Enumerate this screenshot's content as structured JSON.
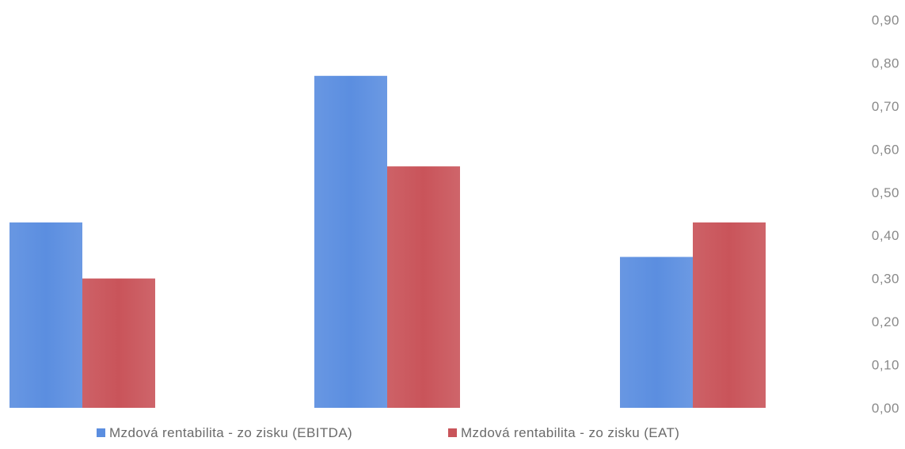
{
  "chart_data": {
    "type": "bar",
    "title": "",
    "xlabel": "",
    "ylabel": "",
    "categories": [
      "",
      "",
      ""
    ],
    "ylim": [
      0,
      0.9
    ],
    "yticks": [
      "0,00",
      "0,10",
      "0,20",
      "0,30",
      "0,40",
      "0,50",
      "0,60",
      "0,70",
      "0,80",
      "0,90"
    ],
    "y_axis_position": "right",
    "grid": false,
    "legend_position": "bottom",
    "series": [
      {
        "name": "Mzdová rentabilita - zo zisku (EBITDA)",
        "color": "#5b8ee0",
        "values": [
          0.43,
          0.77,
          0.35
        ]
      },
      {
        "name": "Mzdová rentabilita - zo zisku (EAT)",
        "color": "#c9545a",
        "values": [
          0.3,
          0.56,
          0.43
        ]
      }
    ]
  }
}
